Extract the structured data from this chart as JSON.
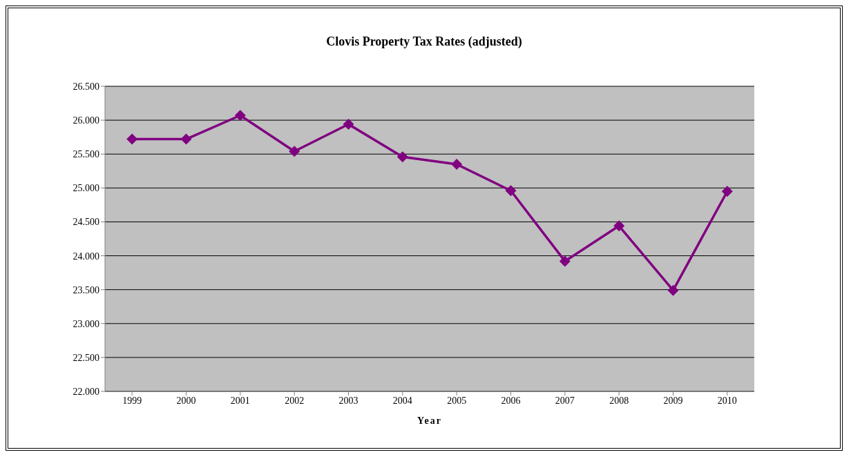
{
  "chart_data": {
    "type": "line",
    "title": "Clovis Property Tax Rates (adjusted)",
    "xlabel": "Year",
    "categories": [
      "1999",
      "2000",
      "2001",
      "2002",
      "2003",
      "2004",
      "2005",
      "2006",
      "2007",
      "2008",
      "2009",
      "2010"
    ],
    "series": [
      {
        "color": "#800080",
        "values": [
          25.72,
          25.72,
          26.07,
          25.54,
          25.94,
          25.46,
          25.35,
          24.96,
          23.92,
          24.44,
          23.49,
          24.95
        ]
      }
    ],
    "ylim": [
      22,
      26.5
    ],
    "yticks": [
      {
        "value": 22,
        "label": "22.000"
      },
      {
        "value": 22.5,
        "label": "22.500"
      },
      {
        "value": 23,
        "label": "23.000"
      },
      {
        "value": 23.5,
        "label": "23.500"
      },
      {
        "value": 24,
        "label": "24.000"
      },
      {
        "value": 24.5,
        "label": "24.500"
      },
      {
        "value": 25,
        "label": "25.000"
      },
      {
        "value": 25.5,
        "label": "25.500"
      },
      {
        "value": 26,
        "label": "26.000"
      },
      {
        "value": 26.5,
        "label": "26.500"
      }
    ],
    "grid": "y",
    "legend": false,
    "marker": "diamond",
    "line_style": "solid"
  }
}
